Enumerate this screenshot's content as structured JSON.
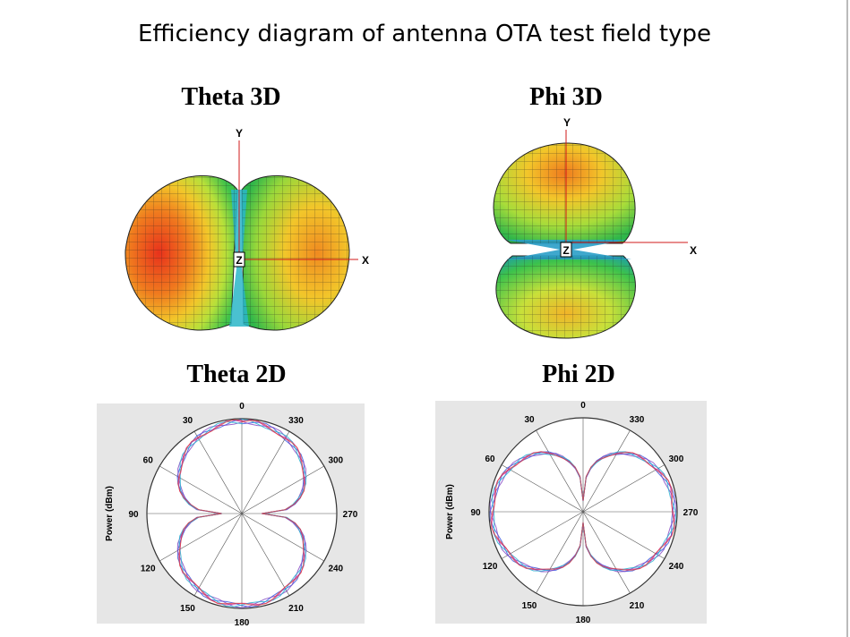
{
  "title": "Efficiency diagram of antenna OTA test field type",
  "plots_3d": [
    {
      "title": "Theta 3D",
      "axes": {
        "y": "Y",
        "x": "X",
        "z": "Z"
      }
    },
    {
      "title": "Phi 3D",
      "axes": {
        "y": "Y",
        "x": "X",
        "z": "Z"
      }
    }
  ],
  "plots_2d": [
    {
      "title": "Theta 2D",
      "y_label": "Power (dBm)",
      "angle_labels": [
        0,
        30,
        60,
        90,
        120,
        150,
        180,
        210,
        240,
        270,
        300,
        330
      ]
    },
    {
      "title": "Phi 2D",
      "y_label": "Power (dBm)",
      "angle_labels": [
        0,
        30,
        60,
        90,
        120,
        150,
        180,
        210,
        240,
        270,
        300,
        330
      ]
    }
  ]
}
